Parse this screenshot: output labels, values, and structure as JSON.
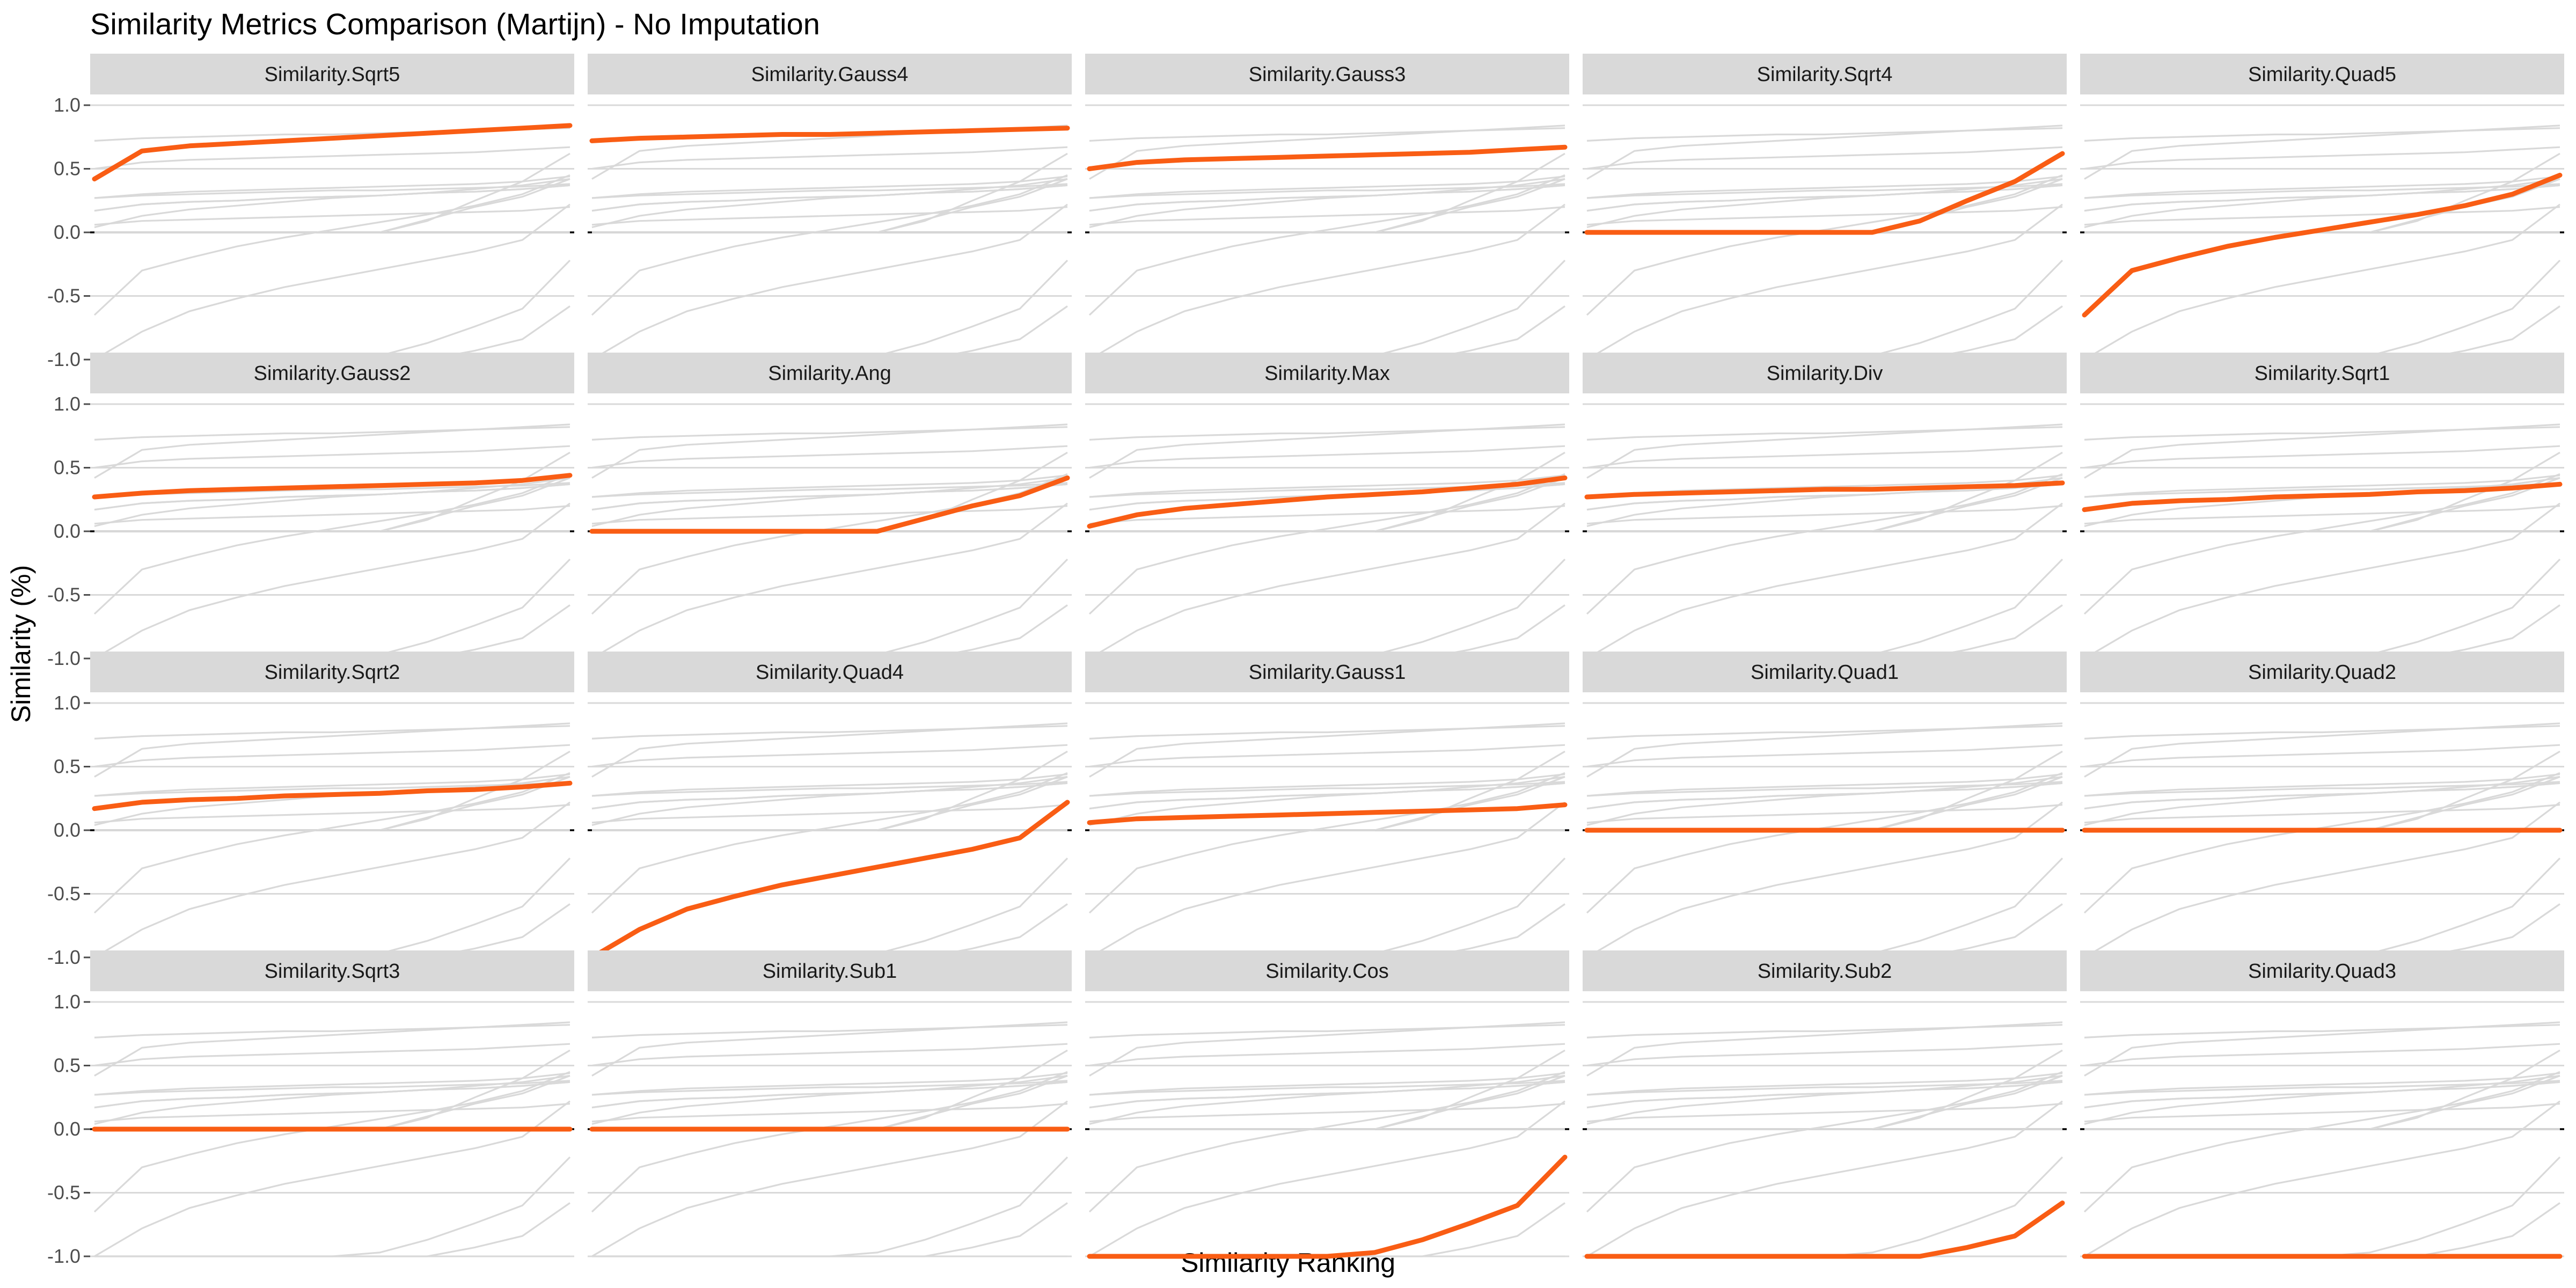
{
  "chart_data": {
    "type": "line",
    "title": "Similarity Metrics Comparison (Martijn) - No Imputation",
    "xlabel": "Similarity Ranking",
    "ylabel": "Similarity (%)",
    "ylim": [
      -1.0,
      1.0
    ],
    "y_ticks": [
      "1.0",
      "0.5",
      "0.0",
      "-0.5",
      "-1.0"
    ],
    "y_tick_values": [
      1.0,
      0.5,
      0.0,
      -0.5,
      -1.0
    ],
    "grid": true,
    "facet_layout": "4 rows x 5 columns",
    "highlight_color": "#f95d14",
    "background_series_color": "#d9d9d9",
    "x": [
      0,
      0.1,
      0.2,
      0.3,
      0.4,
      0.5,
      0.6,
      0.7,
      0.8,
      0.9,
      1.0
    ],
    "series": [
      {
        "name": "Similarity.Sqrt5",
        "values": [
          0.42,
          0.64,
          0.68,
          0.7,
          0.72,
          0.74,
          0.76,
          0.78,
          0.8,
          0.82,
          0.84
        ]
      },
      {
        "name": "Similarity.Gauss4",
        "values": [
          0.72,
          0.74,
          0.75,
          0.76,
          0.77,
          0.77,
          0.78,
          0.79,
          0.8,
          0.81,
          0.82
        ]
      },
      {
        "name": "Similarity.Gauss3",
        "values": [
          0.5,
          0.55,
          0.57,
          0.58,
          0.59,
          0.6,
          0.61,
          0.62,
          0.63,
          0.65,
          0.67
        ]
      },
      {
        "name": "Similarity.Sqrt4",
        "values": [
          0.0,
          0.0,
          0.0,
          0.0,
          0.0,
          0.0,
          0.0,
          0.09,
          0.25,
          0.4,
          0.62
        ]
      },
      {
        "name": "Similarity.Quad5",
        "values": [
          -0.65,
          -0.3,
          -0.2,
          -0.11,
          -0.04,
          0.02,
          0.08,
          0.14,
          0.21,
          0.3,
          0.45
        ]
      },
      {
        "name": "Similarity.Gauss2",
        "values": [
          0.27,
          0.3,
          0.32,
          0.33,
          0.34,
          0.35,
          0.36,
          0.37,
          0.38,
          0.4,
          0.44
        ]
      },
      {
        "name": "Similarity.Ang",
        "values": [
          0.0,
          0.0,
          0.0,
          0.0,
          0.0,
          0.0,
          0.0,
          0.1,
          0.2,
          0.28,
          0.42
        ]
      },
      {
        "name": "Similarity.Max",
        "values": [
          0.04,
          0.13,
          0.18,
          0.21,
          0.24,
          0.27,
          0.29,
          0.31,
          0.34,
          0.37,
          0.42
        ]
      },
      {
        "name": "Similarity.Div",
        "values": [
          0.27,
          0.29,
          0.3,
          0.31,
          0.32,
          0.33,
          0.33,
          0.34,
          0.35,
          0.36,
          0.38
        ]
      },
      {
        "name": "Similarity.Sqrt1",
        "values": [
          0.17,
          0.22,
          0.24,
          0.25,
          0.27,
          0.28,
          0.29,
          0.31,
          0.32,
          0.34,
          0.37
        ]
      },
      {
        "name": "Similarity.Sqrt2",
        "values": [
          0.17,
          0.22,
          0.24,
          0.25,
          0.27,
          0.28,
          0.29,
          0.31,
          0.32,
          0.34,
          0.37
        ]
      },
      {
        "name": "Similarity.Quad4",
        "values": [
          -1.0,
          -0.78,
          -0.62,
          -0.52,
          -0.43,
          -0.36,
          -0.29,
          -0.22,
          -0.15,
          -0.06,
          0.22
        ]
      },
      {
        "name": "Similarity.Gauss1",
        "values": [
          0.06,
          0.09,
          0.1,
          0.11,
          0.12,
          0.13,
          0.14,
          0.15,
          0.16,
          0.17,
          0.2
        ]
      },
      {
        "name": "Similarity.Quad1",
        "values": [
          0.0,
          0.0,
          0.0,
          0.0,
          0.0,
          0.0,
          0.0,
          0.0,
          0.0,
          0.0,
          0.0
        ]
      },
      {
        "name": "Similarity.Quad2",
        "values": [
          0.0,
          0.0,
          0.0,
          0.0,
          0.0,
          0.0,
          0.0,
          0.0,
          0.0,
          0.0,
          0.0
        ]
      },
      {
        "name": "Similarity.Sqrt3",
        "values": [
          0.0,
          0.0,
          0.0,
          0.0,
          0.0,
          0.0,
          0.0,
          0.0,
          0.0,
          0.0,
          0.0
        ]
      },
      {
        "name": "Similarity.Sub1",
        "values": [
          0.0,
          0.0,
          0.0,
          0.0,
          0.0,
          0.0,
          0.0,
          0.0,
          0.0,
          0.0,
          0.0
        ]
      },
      {
        "name": "Similarity.Cos",
        "values": [
          -1.0,
          -1.0,
          -1.0,
          -1.0,
          -1.0,
          -1.0,
          -0.97,
          -0.87,
          -0.74,
          -0.6,
          -0.22
        ]
      },
      {
        "name": "Similarity.Sub2",
        "values": [
          -1.0,
          -1.0,
          -1.0,
          -1.0,
          -1.0,
          -1.0,
          -1.0,
          -1.0,
          -0.93,
          -0.84,
          -0.58
        ]
      },
      {
        "name": "Similarity.Quad3",
        "values": [
          -1.0,
          -1.0,
          -1.0,
          -1.0,
          -1.0,
          -1.0,
          -1.0,
          -1.0,
          -1.0,
          -1.0,
          -1.0
        ]
      }
    ]
  }
}
